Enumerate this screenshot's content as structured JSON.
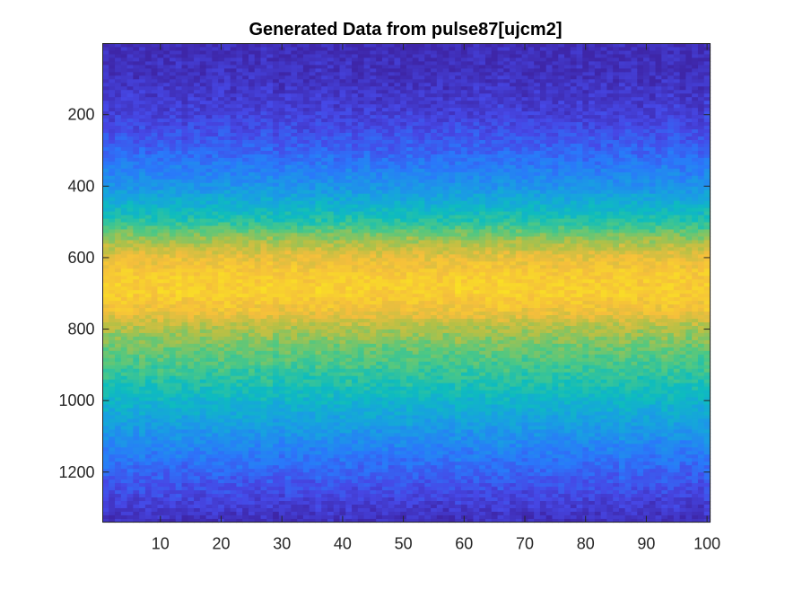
{
  "chart_data": {
    "type": "heatmap",
    "title": "Generated Data from pulse87[ujcm2]",
    "xlabel": "",
    "ylabel": "",
    "colormap": "parula",
    "xlim": [
      0.5,
      100.5
    ],
    "ylim": [
      1,
      1340
    ],
    "y_reversed": true,
    "grid": false,
    "x_ticks": [
      10,
      20,
      30,
      40,
      50,
      60,
      70,
      80,
      90,
      100
    ],
    "y_ticks": [
      200,
      400,
      600,
      800,
      1000,
      1200
    ],
    "columns": 100,
    "profile_y": [
      1,
      100,
      200,
      300,
      400,
      500,
      550,
      600,
      650,
      700,
      750,
      800,
      850,
      900,
      1000,
      1100,
      1200,
      1300,
      1340
    ],
    "profile_level": [
      0.02,
      0.05,
      0.1,
      0.2,
      0.34,
      0.55,
      0.72,
      0.85,
      0.92,
      0.93,
      0.87,
      0.74,
      0.66,
      0.6,
      0.47,
      0.33,
      0.2,
      0.08,
      0.04
    ],
    "noise_amplitude": 0.05
  }
}
